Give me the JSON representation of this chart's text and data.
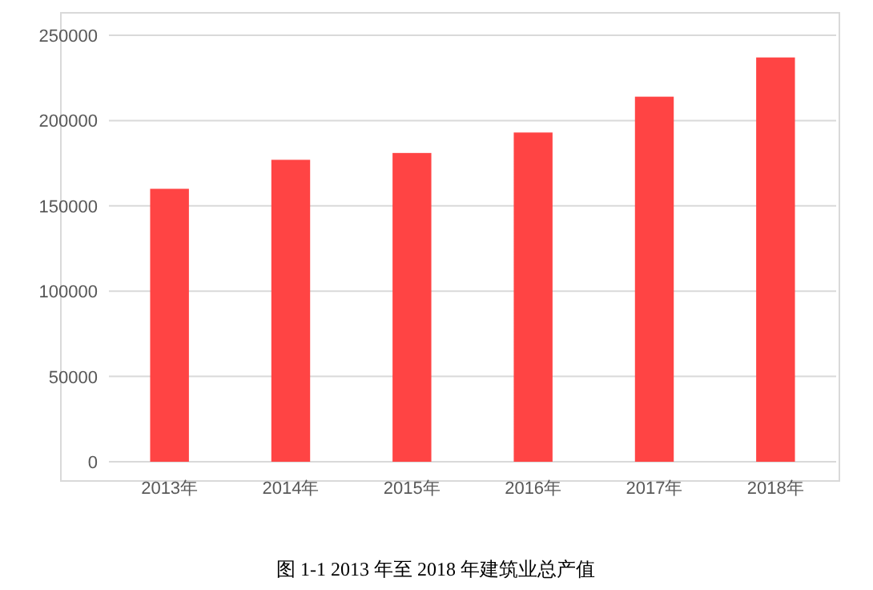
{
  "chart_data": {
    "type": "bar",
    "title": "图 1-1 2013 年至 2018 年建筑业总产值",
    "categories": [
      "2013年",
      "2014年",
      "2015年",
      "2016年",
      "2017年",
      "2018年"
    ],
    "values": [
      160000,
      177000,
      181000,
      193000,
      214000,
      237000
    ],
    "color": "#ff4444",
    "ylim": [
      0,
      250000
    ],
    "yticks": [
      0,
      50000,
      100000,
      150000,
      200000,
      250000
    ],
    "grid": "y"
  }
}
